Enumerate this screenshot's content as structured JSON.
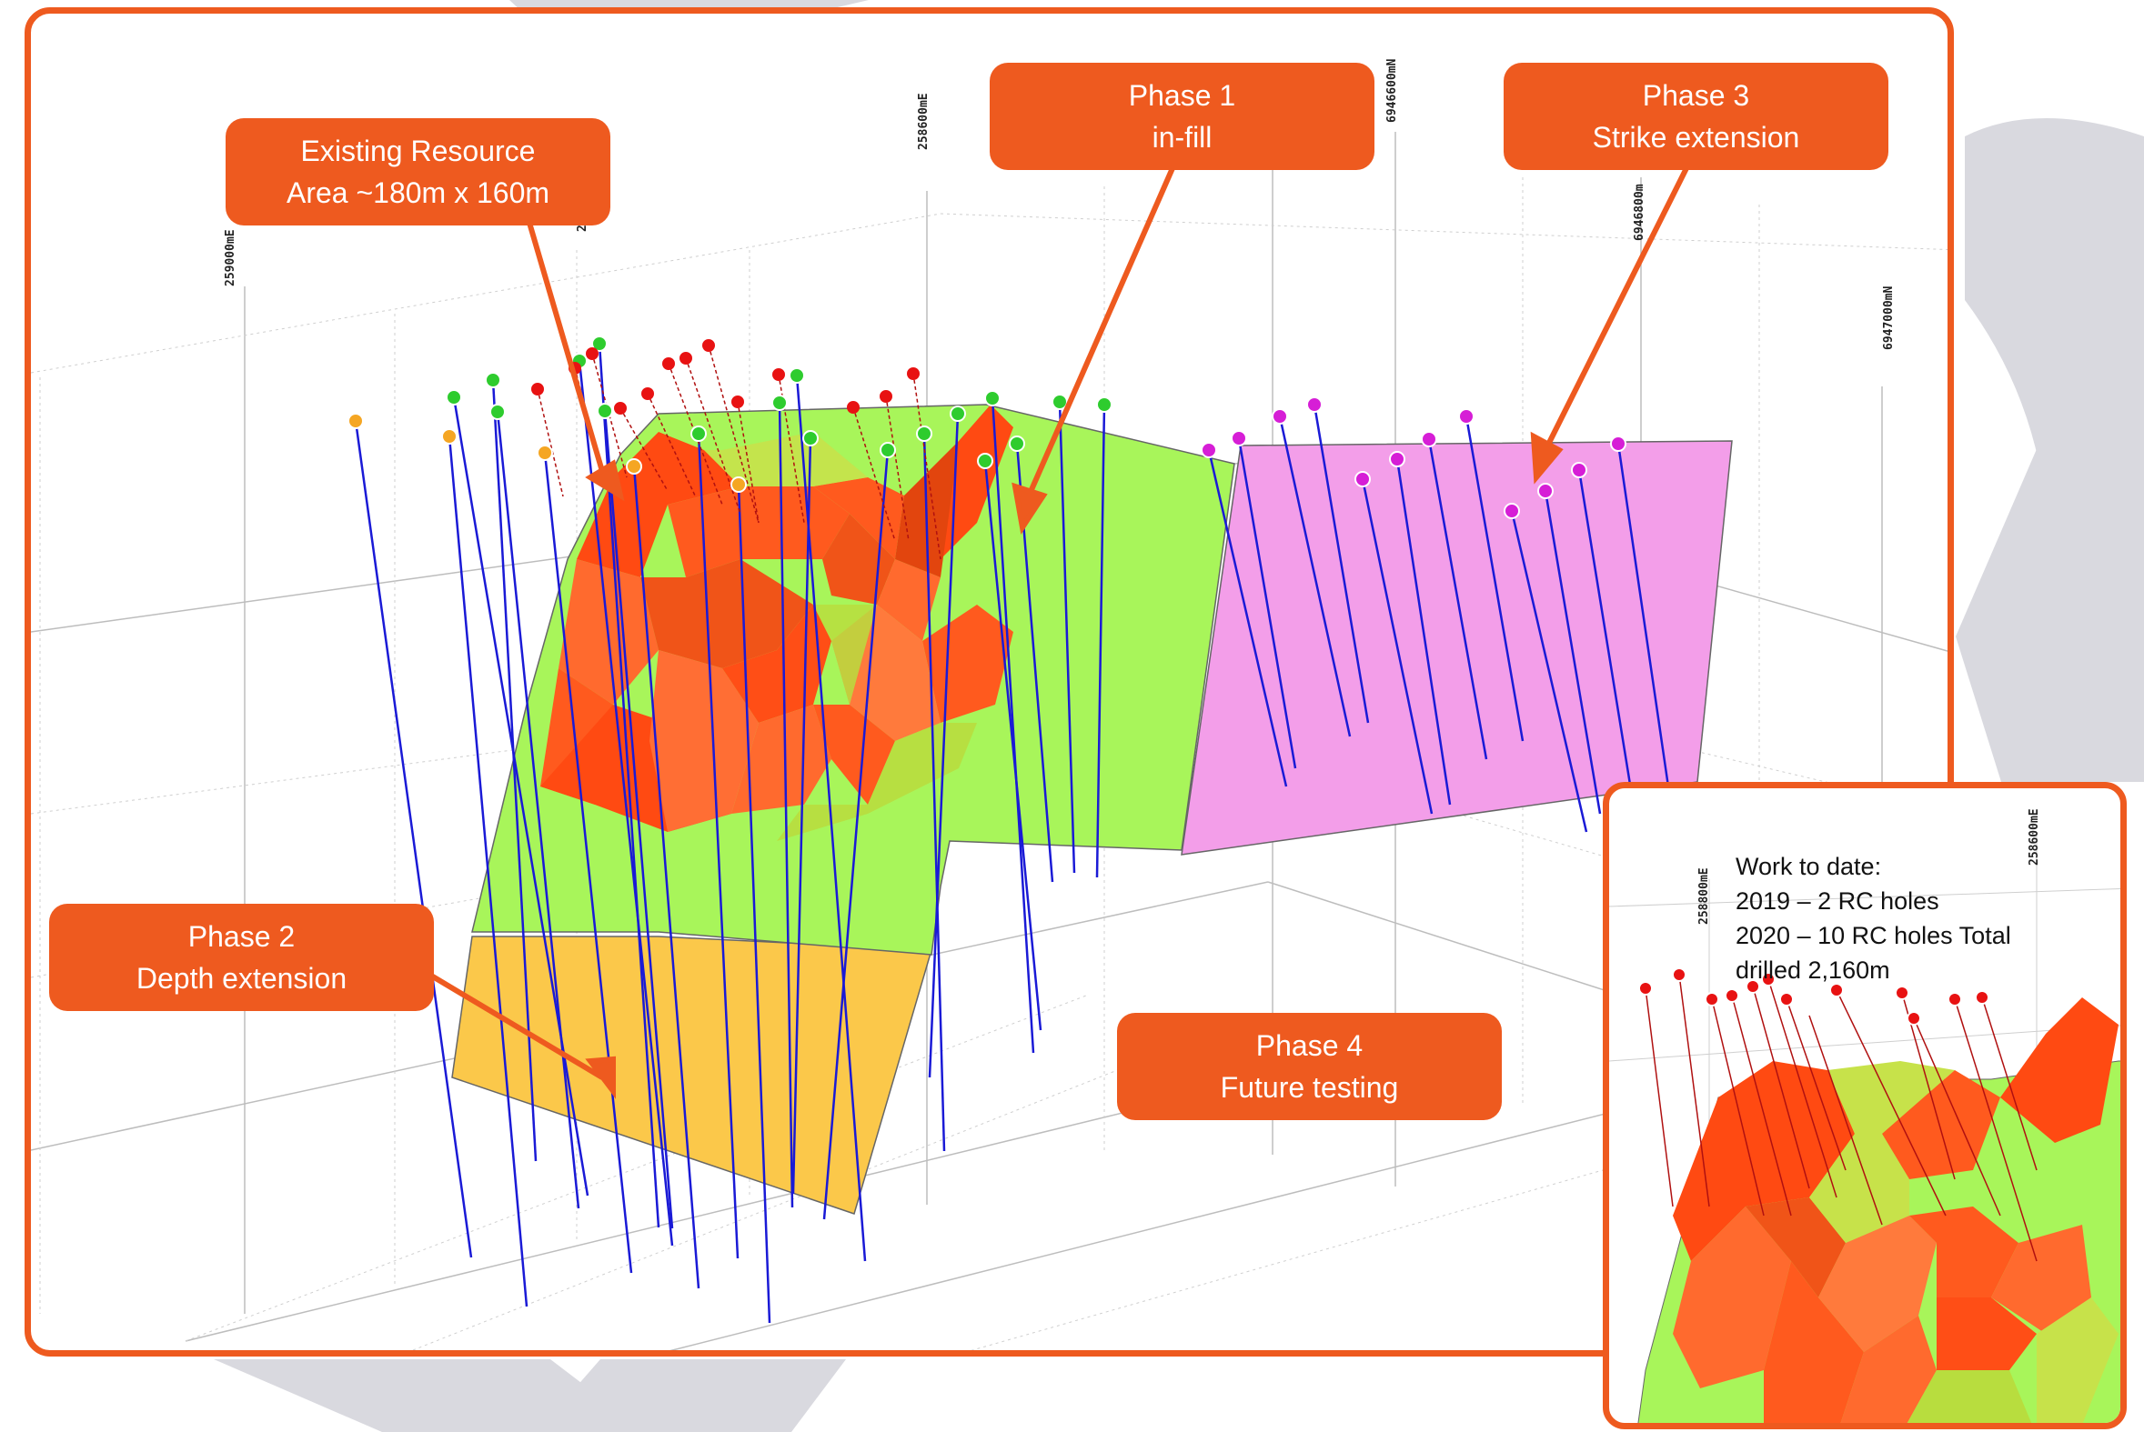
{
  "callouts": {
    "existing_resource": [
      "Existing Resource",
      "Area ~180m x 160m"
    ],
    "phase1": [
      "Phase 1",
      "in-fill"
    ],
    "phase2": [
      "Phase 2",
      "Depth extension"
    ],
    "phase3": [
      "Phase 3",
      "Strike extension"
    ],
    "phase4": [
      "Phase 4",
      "Future testing"
    ]
  },
  "grid_labels": {
    "east_259000": "259000mE",
    "east_258600": "258600mE",
    "north_6946600": "6946600mN",
    "north_6946800": "6946800m",
    "north_6947000": "6947000mN",
    "inset_east_258800": "258800mE",
    "inset_east_258600": "258600mE"
  },
  "inset": {
    "work_to_date": [
      "Work to date:",
      "2019 – 2 RC holes",
      "2020 – 10 RC holes Total",
      "drilled 2,160m"
    ]
  },
  "colors": {
    "accent": "#ee5a1f",
    "existing_resource": "#ff5a1e",
    "phase1": "#a8f55a",
    "phase2": "#fbc84a",
    "phase3": "#f39ee9",
    "drillhole": "#1a1ad6",
    "collar_green": "#2ecc2e",
    "collar_red": "#e81212",
    "collar_orange": "#f5a623",
    "collar_magenta": "#d61ed6"
  },
  "icons": [
    "drillhole-collar-icon",
    "callout-arrow-icon"
  ]
}
